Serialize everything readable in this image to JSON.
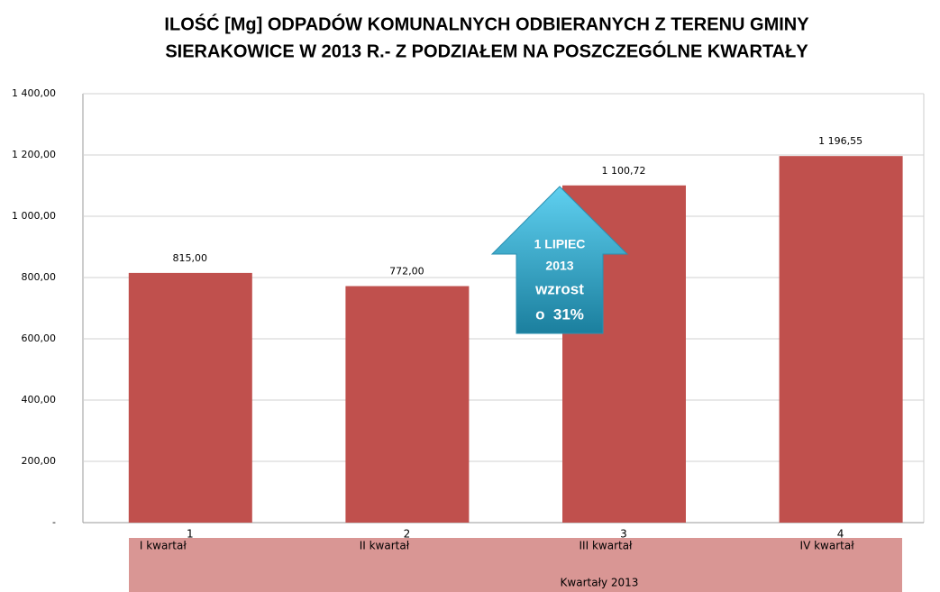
{
  "chart_data": {
    "type": "bar",
    "title": [
      "ILOŚĆ [Mg] ODPADÓW KOMUNALNYCH ODBIERANYCH Z TERENU GMINY",
      "SIERAKOWICE W 2013 R.- Z PODZIAŁEM NA POSZCZEGÓLNE KWARTAŁY"
    ],
    "categories": [
      "1",
      "2",
      "3",
      "4"
    ],
    "category_labels": [
      "I kwartał",
      "II kwartał",
      "III kwartał",
      "IV kwartał"
    ],
    "x_label": "Kwartały 2013",
    "values": [
      815,
      772,
      1100.72,
      1196.55
    ],
    "value_labels": [
      "815,00",
      "772,00",
      "1 100,72",
      "1 196,55"
    ],
    "color": "#c0504d",
    "ylim": [
      0,
      1400
    ],
    "yticks": [
      {
        "value": 0,
        "label": "-"
      },
      {
        "value": 200,
        "label": "200,00"
      },
      {
        "value": 400,
        "label": "400,00"
      },
      {
        "value": 600,
        "label": "600,00"
      },
      {
        "value": 800,
        "label": "800,00"
      },
      {
        "value": 1000,
        "label": "1 000,00"
      },
      {
        "value": 1200,
        "label": "1 200,00"
      },
      {
        "value": 1400,
        "label": "1 400,00"
      }
    ],
    "grid": true,
    "annotation": [
      "1 LIPIEC",
      "2013",
      "wzrost",
      "o  31%"
    ]
  }
}
